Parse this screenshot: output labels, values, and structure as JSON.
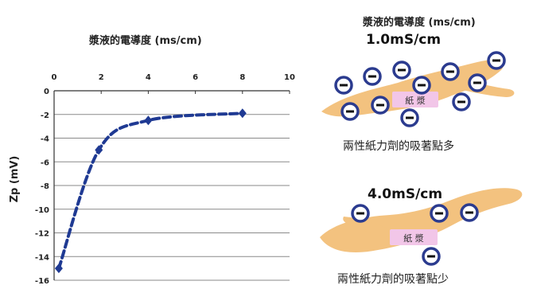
{
  "chart_data": {
    "type": "line",
    "title": "漿液的電導度 (ms/cm)",
    "ylabel": "Zp (mV)",
    "x_ticks": [
      "0",
      "2",
      "4",
      "6",
      "8",
      "10"
    ],
    "y_ticks": [
      "0",
      "-2",
      "-4",
      "-6",
      "-8",
      "-10",
      "-12",
      "-14",
      "-16"
    ],
    "xlim": [
      0,
      10
    ],
    "ylim": [
      -16,
      0
    ],
    "x_axis_position": "top",
    "grid": "horizontal",
    "line_color": "#1f3a93",
    "line_style": "dashed",
    "series": [
      {
        "x": [
          0.2,
          1.9,
          4.0,
          8.0
        ],
        "y": [
          -15.0,
          -5.0,
          -2.5,
          -1.9
        ]
      }
    ]
  },
  "diagram": {
    "title": "漿液的電導度 (ms/cm)",
    "panel_top": {
      "conductivity": "1.0mS/cm",
      "fiber_label": "紙 漿",
      "caption": "兩性紙力劑的吸著點多",
      "charge_symbol": "minus-sign"
    },
    "panel_bottom": {
      "conductivity": "4.0mS/cm",
      "fiber_label": "紙 漿",
      "caption": "兩性紙力劑的吸著點少",
      "charge_symbol": "minus-sign"
    },
    "colors": {
      "fiber": "#f3c27f",
      "label_box": "#f2c6e8",
      "charge_ring": "#2b3b8f"
    }
  }
}
